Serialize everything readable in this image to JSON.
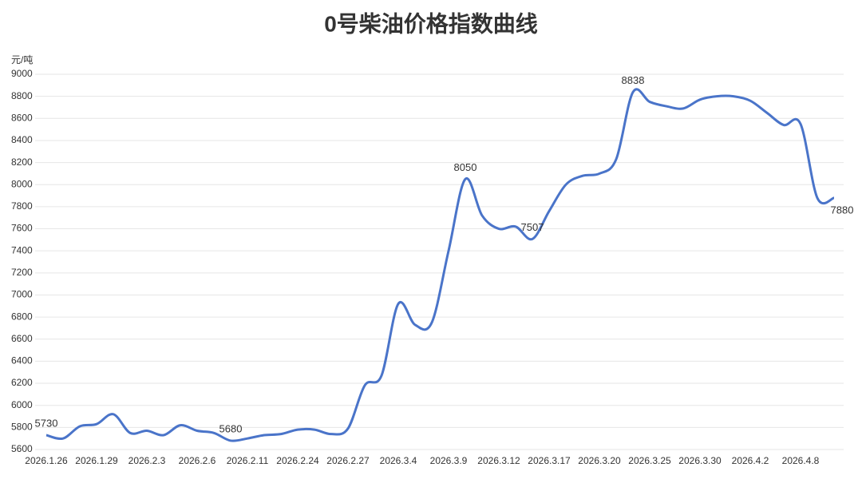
{
  "chart_data": {
    "type": "line",
    "title": "0号柴油价格指数曲线",
    "y_label": "元/吨",
    "categories": [
      "2026.1.26",
      null,
      null,
      "2026.1.29",
      null,
      null,
      "2026.2.3",
      null,
      null,
      "2026.2.6",
      null,
      null,
      "2026.2.11",
      null,
      null,
      "2026.2.24",
      null,
      null,
      "2026.2.27",
      null,
      null,
      "2026.3.4",
      null,
      null,
      "2026.3.9",
      null,
      null,
      "2026.3.12",
      null,
      null,
      "2026.3.17",
      null,
      null,
      "2026.3.20",
      null,
      null,
      "2026.3.25",
      null,
      null,
      "2026.3.30",
      null,
      null,
      "2026.4.2",
      null,
      null,
      "2026.4.8",
      null,
      null
    ],
    "series": [
      {
        "name": "0号柴油",
        "color": "#4a74c9",
        "values": [
          5730,
          5700,
          5810,
          5830,
          5920,
          5750,
          5770,
          5730,
          5820,
          5770,
          5750,
          5680,
          5700,
          5730,
          5740,
          5780,
          5780,
          5740,
          5790,
          6180,
          6270,
          6920,
          6730,
          6750,
          7400,
          8050,
          7720,
          7600,
          7620,
          7507,
          7760,
          8000,
          8080,
          8100,
          8230,
          8838,
          8750,
          8710,
          8690,
          8770,
          8800,
          8800,
          8760,
          8650,
          8540,
          8550,
          7880,
          7880
        ],
        "value_labels": [
          "5730",
          null,
          null,
          null,
          null,
          null,
          null,
          null,
          null,
          null,
          null,
          "5680",
          null,
          null,
          null,
          null,
          null,
          null,
          null,
          null,
          null,
          null,
          null,
          null,
          null,
          "8050",
          null,
          null,
          null,
          "7507",
          null,
          null,
          null,
          null,
          null,
          "8838",
          null,
          null,
          null,
          null,
          null,
          null,
          null,
          null,
          null,
          null,
          null,
          "7880"
        ]
      }
    ],
    "ylim": [
      5600,
      9000
    ],
    "yticks": [
      5600,
      5800,
      6000,
      6200,
      6400,
      6600,
      6800,
      7000,
      7200,
      7400,
      7600,
      7800,
      8000,
      8200,
      8400,
      8600,
      8800,
      9000
    ],
    "grid": true
  }
}
